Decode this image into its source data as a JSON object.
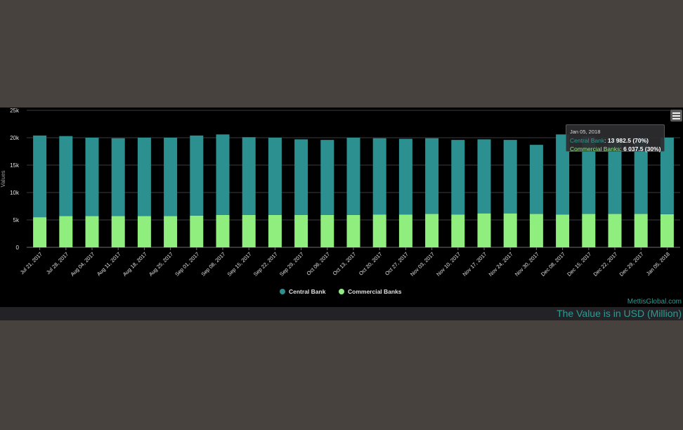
{
  "chart_data": {
    "type": "bar",
    "stacked": true,
    "ylabel": "Values",
    "ylim": [
      0,
      25000
    ],
    "yticks": [
      "0",
      "5k",
      "10k",
      "15k",
      "20k",
      "25k"
    ],
    "grid": true,
    "legend_position": "bottom-center",
    "categories": [
      "Jul 21, 2017",
      "Jul 28, 2017",
      "Aug 04, 2017",
      "Aug 11, 2017",
      "Aug 18, 2017",
      "Aug 25, 2017",
      "Sep 01, 2017",
      "Sep 08, 2017",
      "Sep 15, 2017",
      "Sep 22, 2017",
      "Sep 29, 2017",
      "Oct 06, 2017",
      "Oct 13, 2017",
      "Oct 20, 2017",
      "Oct 27, 2017",
      "Nov 03, 2017",
      "Nov 10, 2017",
      "Nov 17, 2017",
      "Nov 24, 2017",
      "Nov 30, 2017",
      "Dec 08, 2017",
      "Dec 15, 2017",
      "Dec 22, 2017",
      "Dec 29, 2017",
      "Jan 05, 2018"
    ],
    "series": [
      {
        "name": "Central Bank",
        "color": "#2b908f",
        "values": [
          14900,
          14600,
          14300,
          14200,
          14300,
          14300,
          14600,
          14700,
          14200,
          14100,
          13800,
          13700,
          14100,
          13900,
          13800,
          13800,
          13600,
          13500,
          13400,
          12600,
          14600,
          14100,
          13900,
          13900,
          13982.5
        ]
      },
      {
        "name": "Commercial Banks",
        "color": "#90ee7e",
        "values": [
          5500,
          5700,
          5700,
          5700,
          5700,
          5700,
          5800,
          5900,
          5900,
          5900,
          5900,
          5900,
          5900,
          6000,
          6000,
          6100,
          6000,
          6200,
          6200,
          6100,
          6000,
          6100,
          6100,
          6100,
          6037.5
        ]
      }
    ]
  },
  "tooltip": {
    "date": "Jan 05, 2018",
    "central_label": "Central Bank",
    "central_value": "13 982.5 (70%)",
    "commercial_label": "Commercial Banks",
    "commercial_value": "6 037.5 (30%)"
  },
  "credits": "MettisGlobal.com",
  "footer_note": "The Value is in USD (Million)",
  "menu_icon": "hamburger-menu-icon"
}
